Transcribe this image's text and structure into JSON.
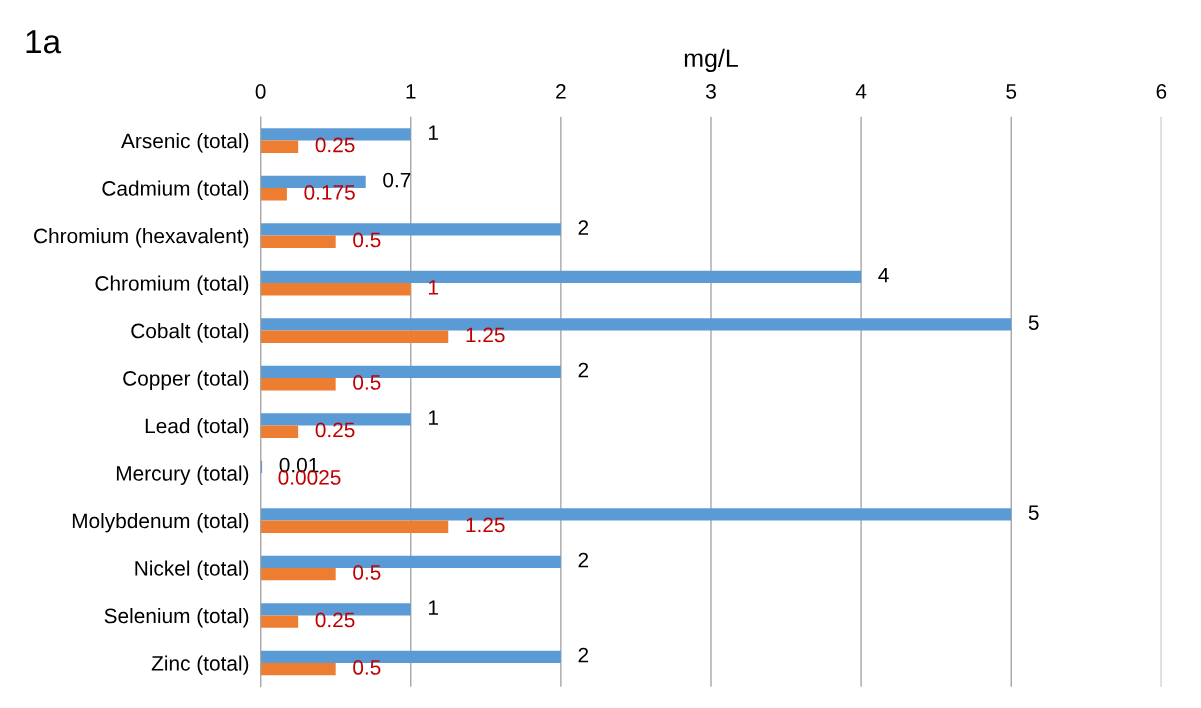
{
  "chart_data": {
    "type": "bar",
    "orientation": "horizontal",
    "title": "1a",
    "xlabel": "mg/L",
    "categories": [
      "Arsenic (total)",
      "Cadmium (total)",
      "Chromium (hexavalent)",
      "Chromium (total)",
      "Cobalt (total)",
      "Copper (total)",
      "Lead (total)",
      "Mercury (total)",
      "Molybdenum (total)",
      "Nickel (total)",
      "Selenium (total)",
      "Zinc (total)"
    ],
    "series": [
      {
        "color": "#5b9bd5",
        "values": [
          1,
          0.7,
          2,
          4,
          5,
          2,
          1,
          0.01,
          5,
          2,
          1,
          2
        ]
      },
      {
        "color": "#ed7d31",
        "values": [
          0.25,
          0.175,
          0.5,
          1,
          1.25,
          0.5,
          0.25,
          0.0025,
          1.25,
          0.5,
          0.25,
          0.5
        ]
      }
    ],
    "xlim": [
      0,
      6
    ],
    "xticks": [
      0,
      1,
      2,
      3,
      4,
      5,
      6
    ],
    "grid": "x",
    "data_labels": true,
    "legend": false
  }
}
